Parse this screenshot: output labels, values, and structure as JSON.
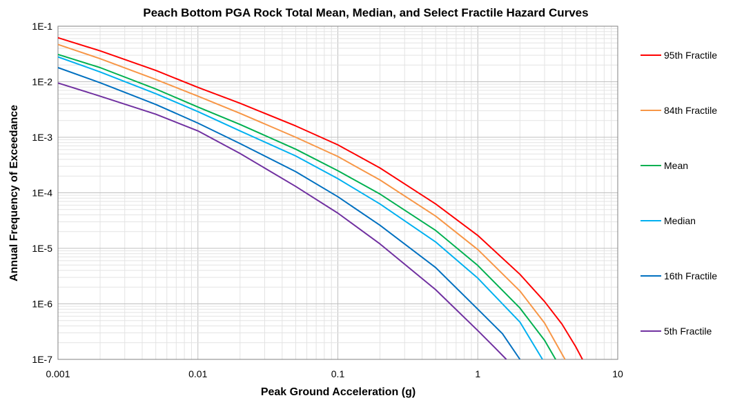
{
  "chart_data": {
    "type": "line",
    "title": "Peach Bottom PGA Rock Total Mean, Median, and Select Fractile Hazard Curves",
    "xlabel": "Peak Ground Acceleration (g)",
    "ylabel": "Annual Frequency of Exceedance",
    "x_scale": "log",
    "y_scale": "log",
    "xlim": [
      0.001,
      10
    ],
    "ylim": [
      1e-07,
      0.1
    ],
    "x_ticks": [
      0.001,
      0.01,
      0.1,
      1,
      10
    ],
    "x_tick_labels": [
      "0.001",
      "0.01",
      "0.1",
      "1",
      "10"
    ],
    "y_ticks": [
      0.1,
      0.01,
      0.001,
      0.0001,
      1e-05,
      1e-06,
      1e-07
    ],
    "y_tick_labels": [
      "1E-1",
      "1E-2",
      "1E-3",
      "1E-4",
      "1E-5",
      "1E-6",
      "1E-7"
    ],
    "grid": true,
    "legend_position": "right",
    "series": [
      {
        "name": "95th Fractile",
        "color": "#ff0000",
        "x": [
          0.001,
          0.002,
          0.005,
          0.01,
          0.02,
          0.05,
          0.1,
          0.2,
          0.5,
          1,
          2,
          3,
          4,
          5,
          5.6
        ],
        "y": [
          0.062,
          0.036,
          0.016,
          0.0079,
          0.0041,
          0.0016,
          0.00073,
          0.00028,
          6.3e-05,
          1.7e-05,
          3.4e-06,
          1.1e-06,
          4.3e-07,
          1.7e-07,
          1e-07
        ]
      },
      {
        "name": "84th Fractile",
        "color": "#f79646",
        "x": [
          0.001,
          0.002,
          0.005,
          0.01,
          0.02,
          0.05,
          0.1,
          0.2,
          0.5,
          1,
          2,
          3,
          4.2
        ],
        "y": [
          0.047,
          0.026,
          0.011,
          0.0055,
          0.0027,
          0.001,
          0.00045,
          0.00017,
          3.8e-05,
          9.5e-06,
          1.7e-06,
          4.5e-07,
          1e-07
        ]
      },
      {
        "name": "Mean",
        "color": "#00b050",
        "x": [
          0.001,
          0.002,
          0.005,
          0.01,
          0.02,
          0.05,
          0.1,
          0.2,
          0.5,
          1,
          2,
          3,
          3.6
        ],
        "y": [
          0.031,
          0.018,
          0.0074,
          0.0035,
          0.0017,
          0.00061,
          0.00025,
          9.5e-05,
          2.1e-05,
          4.9e-06,
          8.4e-07,
          2.2e-07,
          1e-07
        ]
      },
      {
        "name": "Median",
        "color": "#00b0f0",
        "x": [
          0.001,
          0.002,
          0.005,
          0.01,
          0.02,
          0.05,
          0.1,
          0.2,
          0.5,
          1,
          2,
          2.9
        ],
        "y": [
          0.028,
          0.015,
          0.0061,
          0.0029,
          0.0013,
          0.00046,
          0.00018,
          6.3e-05,
          1.3e-05,
          2.9e-06,
          4.7e-07,
          1e-07
        ]
      },
      {
        "name": "16th Fractile",
        "color": "#0070c0",
        "x": [
          0.001,
          0.002,
          0.005,
          0.01,
          0.02,
          0.05,
          0.1,
          0.2,
          0.5,
          1,
          1.5,
          2
        ],
        "y": [
          0.018,
          0.0096,
          0.0039,
          0.0018,
          0.00077,
          0.00024,
          8.5e-05,
          2.6e-05,
          4.5e-06,
          8e-07,
          2.9e-07,
          1e-07
        ]
      },
      {
        "name": "5th Fractile",
        "color": "#7030a0",
        "x": [
          0.001,
          0.002,
          0.005,
          0.01,
          0.02,
          0.05,
          0.1,
          0.2,
          0.5,
          1,
          1.3,
          1.6
        ],
        "y": [
          0.0095,
          0.0055,
          0.0026,
          0.0013,
          0.00051,
          0.00013,
          4.3e-05,
          1.2e-05,
          1.8e-06,
          3.3e-07,
          1.7e-07,
          1e-07
        ]
      }
    ]
  }
}
